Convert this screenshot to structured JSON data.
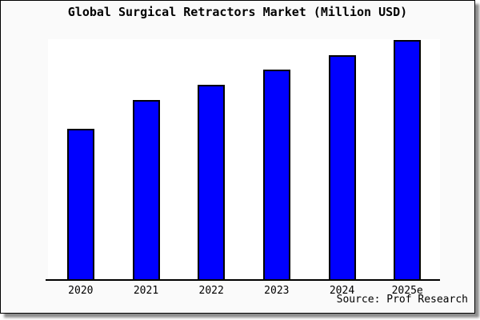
{
  "chart": {
    "title": "Global Surgical Retractors Market (Million USD)",
    "source_note": "Source: Prof Research"
  },
  "chart_data": {
    "type": "bar",
    "title": "Global Surgical Retractors Market (Million USD)",
    "categories": [
      "2020",
      "2021",
      "2022",
      "2023",
      "2024",
      "2025e"
    ],
    "values": [
      62.7,
      74.7,
      81.0,
      87.3,
      93.3,
      99.7
    ],
    "values_note": "relative scale estimated from bar pixel heights; no y-axis labels shown in chart",
    "xlabel": "",
    "ylabel": "",
    "ylim": [
      0,
      100
    ],
    "y_axis_visible": false,
    "gridlines": false,
    "legend_position": "none",
    "source_annotation": "Source: Prof Research",
    "colors": {
      "bar_fill": "#0000ff",
      "bar_border": "#000000",
      "plot_background": "#ffffff",
      "frame_background": "#fafafa",
      "frame_border": "#000000",
      "text": "#000000"
    }
  }
}
